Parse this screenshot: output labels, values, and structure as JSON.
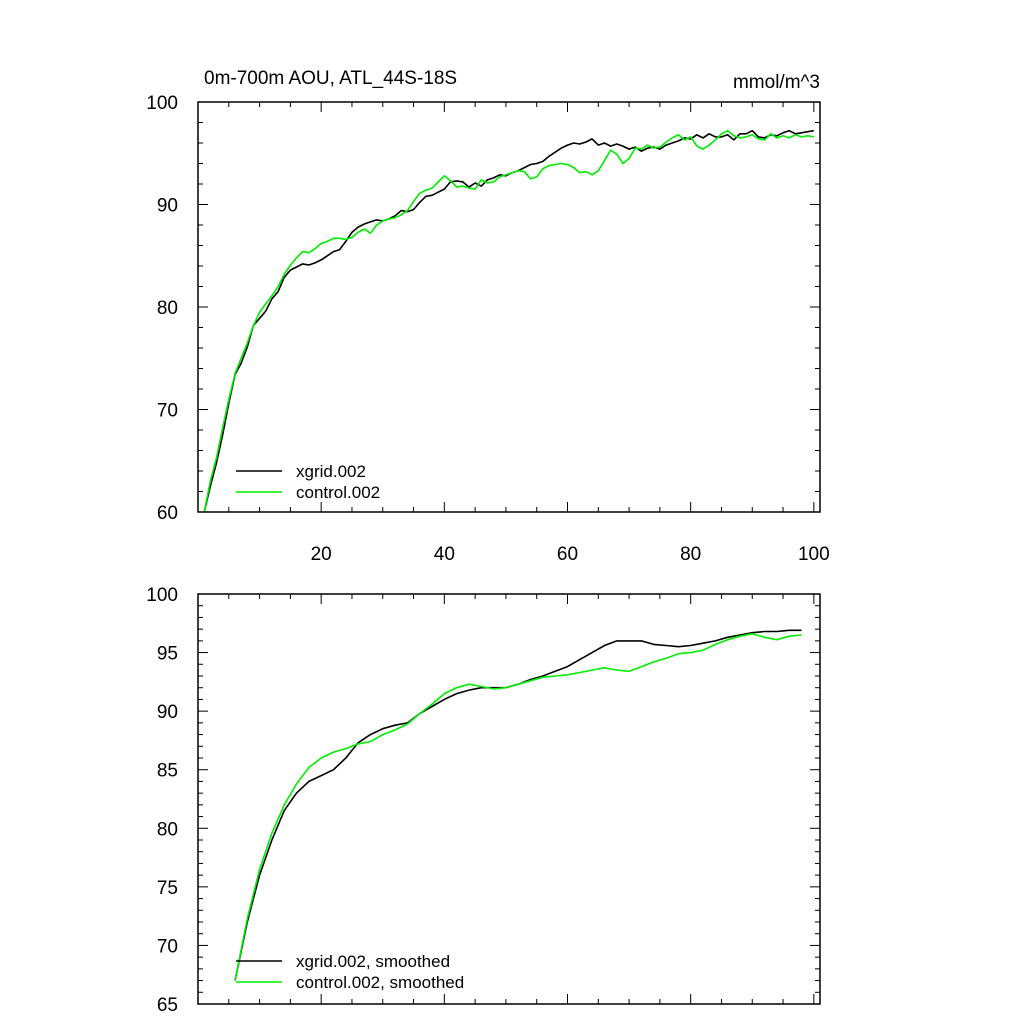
{
  "chart_data": [
    {
      "type": "line",
      "title": "0m-700m AOU, ATL_44S-18S",
      "units": "mmol/m^3",
      "xlim": [
        0,
        101
      ],
      "ylim": [
        60,
        100
      ],
      "y_major_ticks": [
        60,
        70,
        80,
        90,
        100
      ],
      "y_tick_labels": [
        "60",
        "70",
        "80",
        "90",
        "100"
      ],
      "x_major_ticks": [
        20,
        40,
        60,
        80,
        100
      ],
      "x_tick_labels": [
        "20",
        "40",
        "60",
        "80",
        "100"
      ],
      "legend_position": "bottom-left",
      "series": [
        {
          "name": "xgrid.002",
          "color": "#000000",
          "x": [
            1,
            2,
            3,
            4,
            5,
            6,
            7,
            8,
            9,
            10,
            11,
            12,
            13,
            14,
            15,
            16,
            17,
            18,
            19,
            20,
            21,
            22,
            23,
            24,
            25,
            26,
            27,
            28,
            29,
            30,
            31,
            32,
            33,
            34,
            35,
            36,
            37,
            38,
            39,
            40,
            41,
            42,
            43,
            44,
            45,
            46,
            47,
            48,
            49,
            50,
            51,
            52,
            53,
            54,
            55,
            56,
            57,
            58,
            59,
            60,
            61,
            62,
            63,
            64,
            65,
            66,
            67,
            68,
            69,
            70,
            71,
            72,
            73,
            74,
            75,
            76,
            77,
            78,
            79,
            80,
            81,
            82,
            83,
            84,
            85,
            86,
            87,
            88,
            89,
            90,
            91,
            92,
            93,
            94,
            95,
            96,
            97,
            98,
            99,
            100
          ],
          "values": [
            60,
            62.5,
            64.8,
            67.5,
            70.6,
            73.4,
            74.5,
            76.1,
            78.2,
            78.9,
            79.6,
            80.8,
            81.5,
            82.9,
            83.6,
            83.9,
            84.2,
            84.1,
            84.3,
            84.6,
            85,
            85.4,
            85.6,
            86.4,
            87.3,
            87.8,
            88.1,
            88.3,
            88.5,
            88.4,
            88.6,
            88.9,
            89.4,
            89.3,
            89.5,
            90.2,
            90.8,
            90.9,
            91.2,
            91.5,
            92.2,
            92.3,
            92.2,
            91.7,
            92.1,
            91.8,
            92.4,
            92.6,
            92.9,
            92.8,
            93.1,
            93.3,
            93.6,
            93.9,
            94,
            94.2,
            94.7,
            95.1,
            95.5,
            95.8,
            96,
            95.9,
            96.1,
            96.4,
            95.8,
            96,
            95.7,
            95.9,
            95.7,
            95.4,
            95.6,
            95.2,
            95.5,
            95.6,
            95.4,
            95.8,
            96,
            96.2,
            96.5,
            96.4,
            96.8,
            96.5,
            96.9,
            96.6,
            96.6,
            96.8,
            96.3,
            96.9,
            96.9,
            97.2,
            96.6,
            96.5,
            96.8,
            96.7,
            97,
            97.2,
            96.9,
            97,
            97.1,
            97.2
          ],
          "legend_label": "xgrid.002"
        },
        {
          "name": "control.002",
          "color": "#00ee00",
          "x": [
            1,
            2,
            3,
            4,
            5,
            6,
            7,
            8,
            9,
            10,
            11,
            12,
            13,
            14,
            15,
            16,
            17,
            18,
            19,
            20,
            21,
            22,
            23,
            24,
            25,
            26,
            27,
            28,
            29,
            30,
            31,
            32,
            33,
            34,
            35,
            36,
            37,
            38,
            39,
            40,
            41,
            42,
            43,
            44,
            45,
            46,
            47,
            48,
            49,
            50,
            51,
            52,
            53,
            54,
            55,
            56,
            57,
            58,
            59,
            60,
            61,
            62,
            63,
            64,
            65,
            66,
            67,
            68,
            69,
            70,
            71,
            72,
            73,
            74,
            75,
            76,
            77,
            78,
            79,
            80,
            81,
            82,
            83,
            84,
            85,
            86,
            87,
            88,
            89,
            90,
            91,
            92,
            93,
            94,
            95,
            96,
            97,
            98,
            99,
            100
          ],
          "values": [
            60,
            63,
            65.3,
            68.2,
            71,
            73.5,
            75,
            76.5,
            78.2,
            79.5,
            80.3,
            81.1,
            82,
            83.2,
            84.1,
            84.8,
            85.4,
            85.3,
            85.7,
            86.2,
            86.4,
            86.7,
            86.7,
            86.6,
            86.8,
            87.3,
            87.6,
            87.2,
            88,
            88.4,
            88.6,
            88.7,
            89,
            89.4,
            90.3,
            91.1,
            91.4,
            91.6,
            92.2,
            92.8,
            92.3,
            91.7,
            91.8,
            91.6,
            91.5,
            92.4,
            92.1,
            92.2,
            92.7,
            92.9,
            93.1,
            93.3,
            93.2,
            92.5,
            92.7,
            93.5,
            93.8,
            93.9,
            94,
            93.9,
            93.6,
            93.1,
            93.2,
            92.9,
            93.3,
            94.3,
            95.3,
            94.9,
            94,
            94.5,
            95.5,
            95.4,
            95.8,
            95.5,
            95.6,
            96.1,
            96.5,
            96.8,
            96.3,
            96.6,
            95.7,
            95.4,
            95.8,
            96.3,
            96.9,
            97.2,
            96.7,
            96.5,
            96.6,
            96.8,
            96.4,
            96.3,
            96.9,
            96.5,
            96.7,
            96.5,
            96.8,
            96.6,
            96.7,
            96.6
          ],
          "legend_label": "control.002"
        }
      ]
    },
    {
      "type": "line",
      "title": "",
      "xlim": [
        0,
        101
      ],
      "ylim": [
        65,
        100
      ],
      "y_major_ticks": [
        65,
        70,
        75,
        80,
        85,
        90,
        95,
        100
      ],
      "y_tick_labels": [
        "65",
        "70",
        "75",
        "80",
        "85",
        "90",
        "95",
        "100"
      ],
      "x_major_ticks": [
        20,
        40,
        60,
        80,
        100
      ],
      "legend_position": "bottom-left",
      "series": [
        {
          "name": "xgrid.002, smoothed",
          "color": "#000000",
          "x": [
            6,
            8,
            10,
            12,
            14,
            16,
            18,
            20,
            22,
            24,
            26,
            28,
            30,
            32,
            34,
            36,
            38,
            40,
            42,
            44,
            46,
            48,
            50,
            52,
            54,
            56,
            58,
            60,
            62,
            64,
            66,
            68,
            70,
            72,
            74,
            76,
            78,
            80,
            82,
            84,
            86,
            88,
            90,
            92,
            94,
            96,
            98
          ],
          "values": [
            67,
            72,
            76,
            79,
            81.5,
            83,
            84,
            84.5,
            85,
            86,
            87.3,
            88,
            88.5,
            88.8,
            89,
            89.8,
            90.4,
            91,
            91.5,
            91.8,
            92,
            92,
            92,
            92.3,
            92.7,
            93,
            93.4,
            93.8,
            94.4,
            95,
            95.6,
            96,
            96,
            96,
            95.7,
            95.6,
            95.5,
            95.6,
            95.8,
            96,
            96.3,
            96.5,
            96.7,
            96.8,
            96.8,
            96.9,
            96.9
          ],
          "legend_label": "xgrid.002, smoothed"
        },
        {
          "name": "control.002, smoothed",
          "color": "#00ee00",
          "x": [
            6,
            8,
            10,
            12,
            14,
            16,
            18,
            20,
            22,
            24,
            26,
            28,
            30,
            32,
            34,
            36,
            38,
            40,
            42,
            44,
            46,
            48,
            50,
            52,
            54,
            56,
            58,
            60,
            62,
            64,
            66,
            68,
            70,
            72,
            74,
            76,
            78,
            80,
            82,
            84,
            86,
            88,
            90,
            92,
            94,
            96,
            98
          ],
          "values": [
            67,
            72.3,
            76.5,
            79.6,
            82,
            83.8,
            85.2,
            86,
            86.5,
            86.8,
            87.2,
            87.4,
            88,
            88.4,
            88.9,
            89.8,
            90.6,
            91.5,
            92,
            92.3,
            92.1,
            91.9,
            92,
            92.3,
            92.6,
            92.9,
            93,
            93.1,
            93.3,
            93.5,
            93.7,
            93.5,
            93.4,
            93.8,
            94.2,
            94.5,
            94.9,
            95,
            95.2,
            95.7,
            96.1,
            96.4,
            96.6,
            96.3,
            96.1,
            96.4,
            96.5
          ],
          "legend_label": "control.002, smoothed"
        }
      ]
    }
  ]
}
